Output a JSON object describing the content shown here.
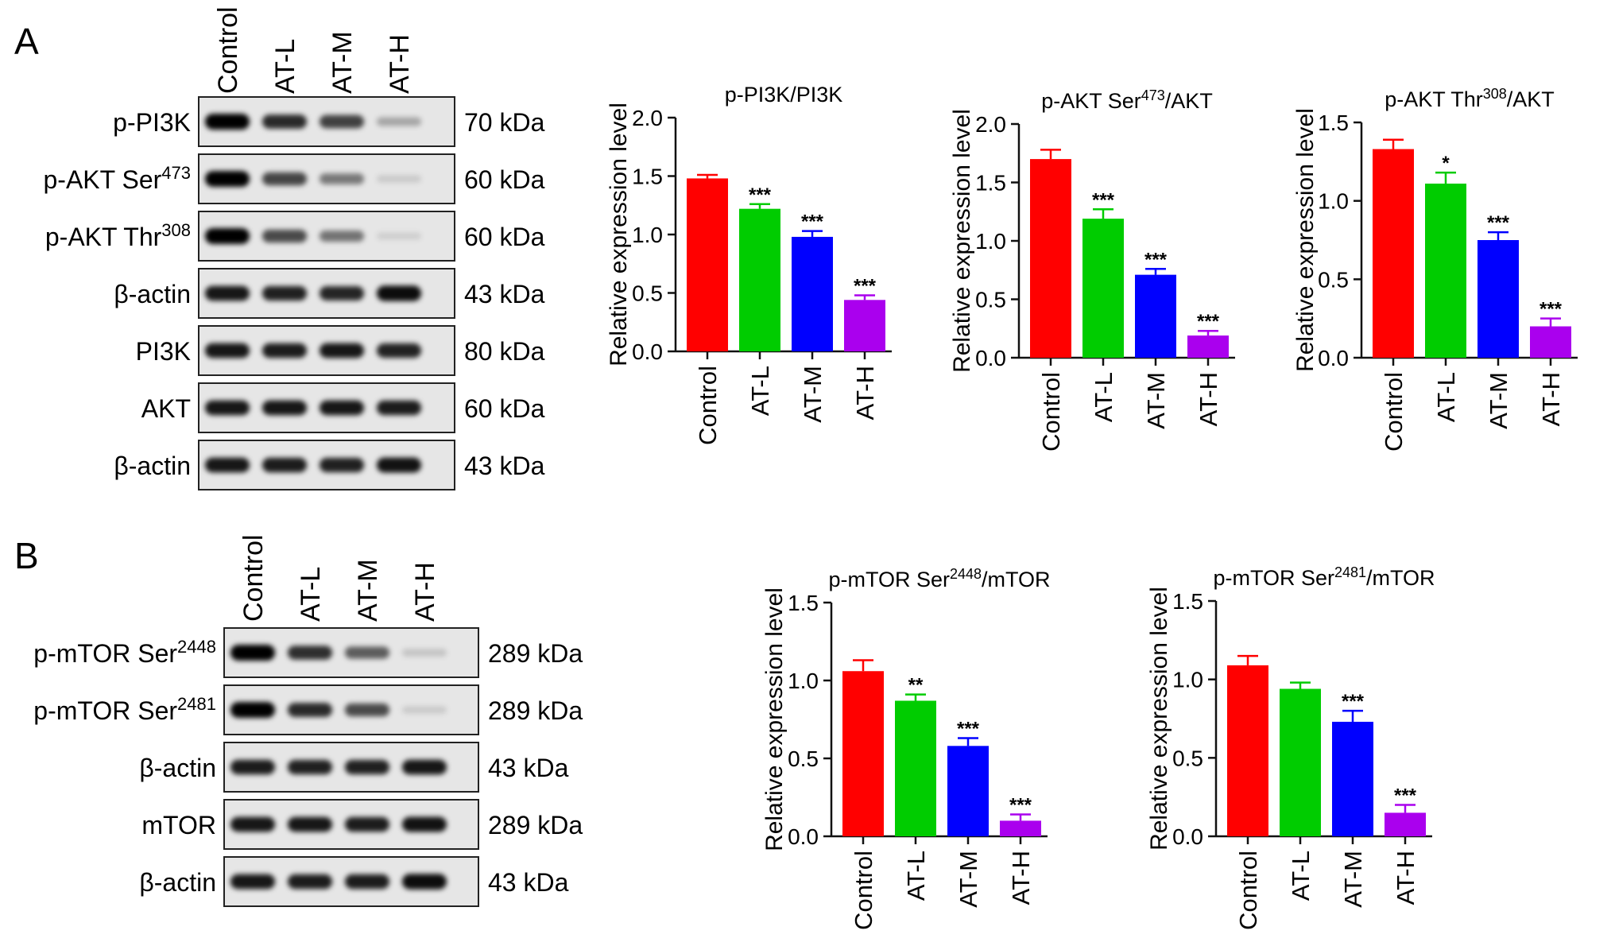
{
  "panel_a": {
    "label": "A",
    "lane_labels": [
      "Control",
      "AT-L",
      "AT-M",
      "AT-H"
    ],
    "blots": [
      {
        "name": "p-PI3K",
        "sup": "",
        "size": "70 kDa",
        "intensity": [
          1.0,
          0.82,
          0.72,
          0.28
        ]
      },
      {
        "name": "p-AKT Ser",
        "sup": "473",
        "size": "60 kDa",
        "intensity": [
          1.0,
          0.7,
          0.48,
          0.12
        ]
      },
      {
        "name": "p-AKT Thr",
        "sup": "308",
        "size": "60 kDa",
        "intensity": [
          1.0,
          0.68,
          0.5,
          0.1
        ]
      },
      {
        "name": "β-actin",
        "sup": "",
        "size": "43 kDa",
        "intensity": [
          0.9,
          0.86,
          0.84,
          0.95
        ]
      },
      {
        "name": "PI3K",
        "sup": "",
        "size": "80 kDa",
        "intensity": [
          0.9,
          0.88,
          0.9,
          0.85
        ]
      },
      {
        "name": "AKT",
        "sup": "",
        "size": "60 kDa",
        "intensity": [
          0.9,
          0.9,
          0.9,
          0.88
        ]
      },
      {
        "name": "β-actin",
        "sup": "",
        "size": "43 kDa",
        "intensity": [
          0.9,
          0.88,
          0.86,
          0.92
        ]
      }
    ]
  },
  "panel_b": {
    "label": "B",
    "lane_labels": [
      "Control",
      "AT-L",
      "AT-M",
      "AT-H"
    ],
    "blots": [
      {
        "name": "p-mTOR Ser",
        "sup": "2448",
        "size": "289 kDa",
        "intensity": [
          1.0,
          0.8,
          0.6,
          0.15
        ]
      },
      {
        "name": "p-mTOR Ser",
        "sup": "2481",
        "size": "289 kDa",
        "intensity": [
          1.0,
          0.82,
          0.68,
          0.12
        ]
      },
      {
        "name": "β-actin",
        "sup": "",
        "size": "43 kDa",
        "intensity": [
          0.88,
          0.86,
          0.86,
          0.9
        ]
      },
      {
        "name": "mTOR",
        "sup": "",
        "size": "289 kDa",
        "intensity": [
          0.9,
          0.9,
          0.88,
          0.92
        ]
      },
      {
        "name": "β-actin",
        "sup": "",
        "size": "43 kDa",
        "intensity": [
          0.9,
          0.88,
          0.88,
          0.95
        ]
      }
    ]
  },
  "bar_colors": [
    "#ff0000",
    "#00cc00",
    "#0000ff",
    "#aa00ee"
  ],
  "chart_data": [
    {
      "type": "bar",
      "title": "p-PI3K/PI3K",
      "title_sup": "",
      "title_tail": "",
      "ylabel": "Relative expression level",
      "ylim": [
        0,
        2.0
      ],
      "yticks": [
        "0.0",
        "0.5",
        "1.0",
        "1.5",
        "2.0"
      ],
      "categories": [
        "Control",
        "AT-L",
        "AT-M",
        "AT-H"
      ],
      "values": [
        1.48,
        1.22,
        0.98,
        0.44
      ],
      "errors": [
        0.03,
        0.04,
        0.05,
        0.04
      ],
      "significance": [
        "",
        "***",
        "***",
        "***"
      ]
    },
    {
      "type": "bar",
      "title": "p-AKT Ser",
      "title_sup": "473",
      "title_tail": "/AKT",
      "ylabel": "Relative expression level",
      "ylim": [
        0,
        2.0
      ],
      "yticks": [
        "0.0",
        "0.5",
        "1.0",
        "1.5",
        "2.0"
      ],
      "categories": [
        "Control",
        "AT-L",
        "AT-M",
        "AT-H"
      ],
      "values": [
        1.7,
        1.19,
        0.71,
        0.19
      ],
      "errors": [
        0.08,
        0.08,
        0.05,
        0.04
      ],
      "significance": [
        "",
        "***",
        "***",
        "***"
      ]
    },
    {
      "type": "bar",
      "title": "p-AKT Thr",
      "title_sup": "308",
      "title_tail": "/AKT",
      "ylabel": "Relative expression level",
      "ylim": [
        0,
        1.5
      ],
      "yticks": [
        "0.0",
        "0.5",
        "1.0",
        "1.5"
      ],
      "categories": [
        "Control",
        "AT-L",
        "AT-M",
        "AT-H"
      ],
      "values": [
        1.33,
        1.11,
        0.75,
        0.2
      ],
      "errors": [
        0.06,
        0.07,
        0.05,
        0.05
      ],
      "significance": [
        "",
        "*",
        "***",
        "***"
      ]
    },
    {
      "type": "bar",
      "title": "p-mTOR Ser",
      "title_sup": "2448",
      "title_tail": "/mTOR",
      "ylabel": "Relative expression level",
      "ylim": [
        0,
        1.5
      ],
      "yticks": [
        "0.0",
        "0.5",
        "1.0",
        "1.5"
      ],
      "categories": [
        "Control",
        "AT-L",
        "AT-M",
        "AT-H"
      ],
      "values": [
        1.06,
        0.87,
        0.58,
        0.1
      ],
      "errors": [
        0.07,
        0.04,
        0.05,
        0.04
      ],
      "significance": [
        "",
        "**",
        "***",
        "***"
      ]
    },
    {
      "type": "bar",
      "title": "p-mTOR Ser",
      "title_sup": "2481",
      "title_tail": "/mTOR",
      "ylabel": "Relative expression level",
      "ylim": [
        0,
        1.5
      ],
      "yticks": [
        "0.0",
        "0.5",
        "1.0",
        "1.5"
      ],
      "categories": [
        "Control",
        "AT-L",
        "AT-M",
        "AT-H"
      ],
      "values": [
        1.09,
        0.94,
        0.73,
        0.15
      ],
      "errors": [
        0.06,
        0.04,
        0.07,
        0.05
      ],
      "significance": [
        "",
        "",
        "***",
        "***"
      ]
    }
  ]
}
